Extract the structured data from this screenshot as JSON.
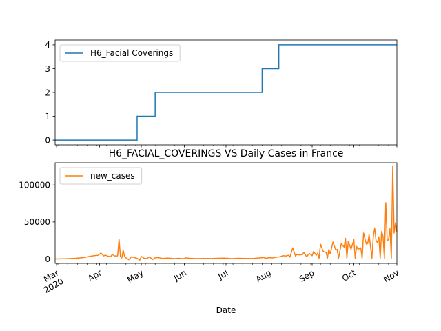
{
  "chart_data": [
    {
      "type": "line",
      "title": "",
      "xlabel": "",
      "ylabel": "",
      "x_range": [
        "2020-02-29",
        "2020-11-01"
      ],
      "ylim": [
        -0.2,
        4.2
      ],
      "yticks": [
        0,
        1,
        2,
        3,
        4
      ],
      "ytick_labels": [
        "0",
        "1",
        "2",
        "3",
        "4"
      ],
      "legend": "upper left",
      "grid": false,
      "series": [
        {
          "name": "H6_Facial Coverings",
          "color": "#1f77b4",
          "step": "post",
          "x": [
            "2020-02-29",
            "2020-04-28",
            "2020-05-11",
            "2020-07-27",
            "2020-08-08",
            "2020-11-01"
          ],
          "values": [
            0,
            1,
            2,
            3,
            4,
            4
          ]
        }
      ]
    },
    {
      "type": "line",
      "title": "H6_FACIAL_COVERINGS VS Daily Cases in France",
      "xlabel": "Date",
      "ylabel": "",
      "x_range": [
        "2020-02-29",
        "2020-11-01"
      ],
      "ylim": [
        -6000,
        130000
      ],
      "yticks": [
        0,
        50000,
        100000
      ],
      "ytick_labels": [
        "0",
        "50000",
        "100000"
      ],
      "xticks": [
        "2020-03-01",
        "2020-04-01",
        "2020-05-01",
        "2020-06-01",
        "2020-07-01",
        "2020-08-01",
        "2020-09-01",
        "2020-10-01",
        "2020-11-01"
      ],
      "xtick_labels": [
        "Mar\n2020",
        "Apr",
        "May",
        "Jun",
        "Jul",
        "Aug",
        "Sep",
        "Oct",
        "Nov"
      ],
      "legend": "upper left",
      "grid": false,
      "series": [
        {
          "name": "new_cases",
          "color": "#ff7f0e",
          "x": [
            "2020-02-29",
            "2020-03-05",
            "2020-03-10",
            "2020-03-15",
            "2020-03-20",
            "2020-03-25",
            "2020-03-28",
            "2020-03-31",
            "2020-04-02",
            "2020-04-04",
            "2020-04-05",
            "2020-04-07",
            "2020-04-09",
            "2020-04-10",
            "2020-04-12",
            "2020-04-14",
            "2020-04-15",
            "2020-04-16",
            "2020-04-17",
            "2020-04-18",
            "2020-04-19",
            "2020-04-20",
            "2020-04-22",
            "2020-04-24",
            "2020-04-26",
            "2020-04-28",
            "2020-04-30",
            "2020-05-01",
            "2020-05-03",
            "2020-05-05",
            "2020-05-07",
            "2020-05-09",
            "2020-05-11",
            "2020-05-13",
            "2020-05-16",
            "2020-05-20",
            "2020-05-25",
            "2020-05-28",
            "2020-05-31",
            "2020-06-02",
            "2020-06-05",
            "2020-06-10",
            "2020-06-15",
            "2020-06-20",
            "2020-06-25",
            "2020-06-30",
            "2020-07-05",
            "2020-07-10",
            "2020-07-15",
            "2020-07-20",
            "2020-07-25",
            "2020-07-28",
            "2020-07-30",
            "2020-08-01",
            "2020-08-04",
            "2020-08-06",
            "2020-08-09",
            "2020-08-11",
            "2020-08-13",
            "2020-08-15",
            "2020-08-16",
            "2020-08-18",
            "2020-08-20",
            "2020-08-21",
            "2020-08-23",
            "2020-08-25",
            "2020-08-26",
            "2020-08-28",
            "2020-08-30",
            "2020-09-01",
            "2020-09-02",
            "2020-09-04",
            "2020-09-05",
            "2020-09-06",
            "2020-09-07",
            "2020-09-09",
            "2020-09-11",
            "2020-09-12",
            "2020-09-13",
            "2020-09-14",
            "2020-09-16",
            "2020-09-18",
            "2020-09-19",
            "2020-09-20",
            "2020-09-22",
            "2020-09-24",
            "2020-09-25",
            "2020-09-26",
            "2020-09-27",
            "2020-09-29",
            "2020-10-01",
            "2020-10-02",
            "2020-10-03",
            "2020-10-04",
            "2020-10-06",
            "2020-10-07",
            "2020-10-08",
            "2020-10-10",
            "2020-10-11",
            "2020-10-12",
            "2020-10-14",
            "2020-10-15",
            "2020-10-16",
            "2020-10-17",
            "2020-10-18",
            "2020-10-19",
            "2020-10-20",
            "2020-10-21",
            "2020-10-22",
            "2020-10-23",
            "2020-10-24",
            "2020-10-25",
            "2020-10-26",
            "2020-10-27",
            "2020-10-28",
            "2020-10-29",
            "2020-10-30",
            "2020-10-31",
            "2020-11-01"
          ],
          "values": [
            100,
            200,
            500,
            1000,
            1800,
            3500,
            4500,
            5000,
            8000,
            4200,
            5200,
            3800,
            3000,
            6000,
            4000,
            4200,
            27000,
            3500,
            1500,
            12000,
            3000,
            1500,
            -1000,
            3000,
            2000,
            800,
            -1500,
            3500,
            1000,
            500,
            3000,
            -800,
            1500,
            2000,
            800,
            1200,
            500,
            1000,
            300,
            1500,
            1000,
            500,
            800,
            600,
            1000,
            1200,
            500,
            1000,
            800,
            600,
            1500,
            2000,
            1000,
            1800,
            1500,
            2500,
            3000,
            4500,
            4000,
            5000,
            2500,
            15000,
            4000,
            6000,
            5500,
            6000,
            9000,
            3000,
            7500,
            4500,
            10000,
            5000,
            8000,
            1000,
            20000,
            10000,
            9000,
            1000,
            13000,
            7000,
            23000,
            12000,
            13000,
            1000,
            21000,
            16000,
            28000,
            1000,
            24000,
            13000,
            26000,
            1000,
            17000,
            13000,
            15000,
            1000,
            35000,
            20000,
            21000,
            33000,
            1000,
            30000,
            42000,
            25000,
            22000,
            30000,
            1000,
            37000,
            31000,
            1000,
            76000,
            25000,
            26000,
            41000,
            1000,
            125000,
            35000,
            49000,
            36000
          ]
        }
      ]
    }
  ]
}
